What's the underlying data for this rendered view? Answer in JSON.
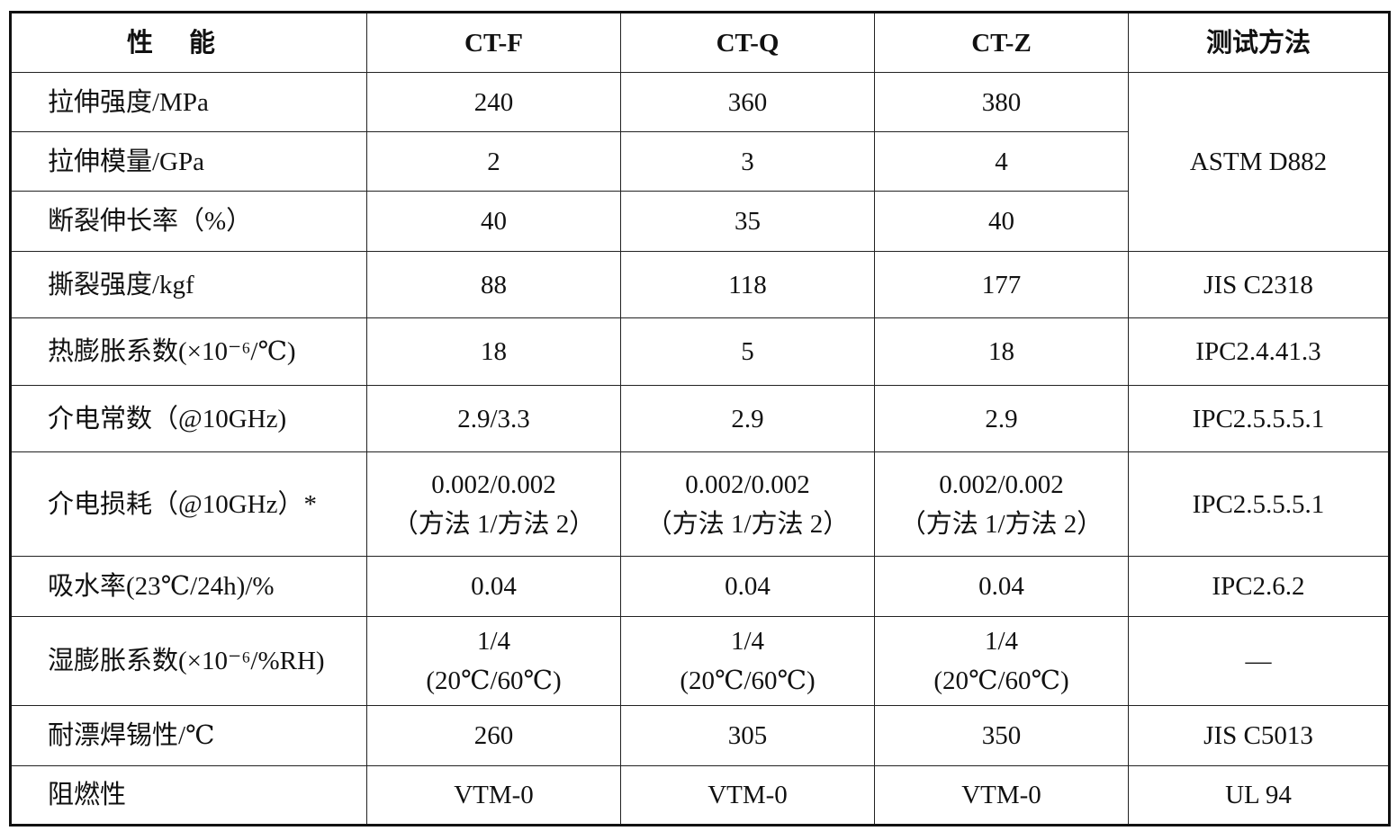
{
  "table": {
    "header": [
      "性能",
      "CT-F",
      "CT-Q",
      "CT-Z",
      "测试方法"
    ],
    "rows": [
      {
        "property": "拉伸强度/MPa",
        "values": [
          "240",
          "360",
          "380"
        ],
        "method": "ASTM D882",
        "method_rows": 3
      },
      {
        "property": "拉伸模量/GPa",
        "values": [
          "2",
          "3",
          "4"
        ]
      },
      {
        "property": "断裂伸长率（%）",
        "values": [
          "40",
          "35",
          "40"
        ]
      },
      {
        "property": "撕裂强度/kgf",
        "values": [
          "88",
          "118",
          "177"
        ],
        "method": "JIS C2318"
      },
      {
        "property": "热膨胀系数(×10⁻⁶/℃)",
        "values": [
          "18",
          "5",
          "18"
        ],
        "method": "IPC2.4.41.3"
      },
      {
        "property": "介电常数（@10GHz)",
        "values": [
          "2.9/3.3",
          "2.9",
          "2.9"
        ],
        "method": "IPC2.5.5.5.1"
      },
      {
        "property": "介电损耗（@10GHz）*",
        "values": [
          "0.002/0.002\n（方法 1/方法 2）",
          "0.002/0.002\n（方法 1/方法 2）",
          "0.002/0.002\n（方法 1/方法 2）"
        ],
        "method": "IPC2.5.5.5.1"
      },
      {
        "property": "吸水率(23℃/24h)/%",
        "values": [
          "0.04",
          "0.04",
          "0.04"
        ],
        "method": "IPC2.6.2"
      },
      {
        "property": "湿膨胀系数(×10⁻⁶/%RH)",
        "values": [
          "1/4\n(20℃/60℃)",
          "1/4\n(20℃/60℃)",
          "1/4\n(20℃/60℃)"
        ],
        "method": "—"
      },
      {
        "property": "耐漂焊锡性/℃",
        "values": [
          "260",
          "305",
          "350"
        ],
        "method": "JIS C5013"
      },
      {
        "property": "阻燃性",
        "values": [
          "VTM-0",
          "VTM-0",
          "VTM-0"
        ],
        "method": "UL 94"
      }
    ]
  }
}
